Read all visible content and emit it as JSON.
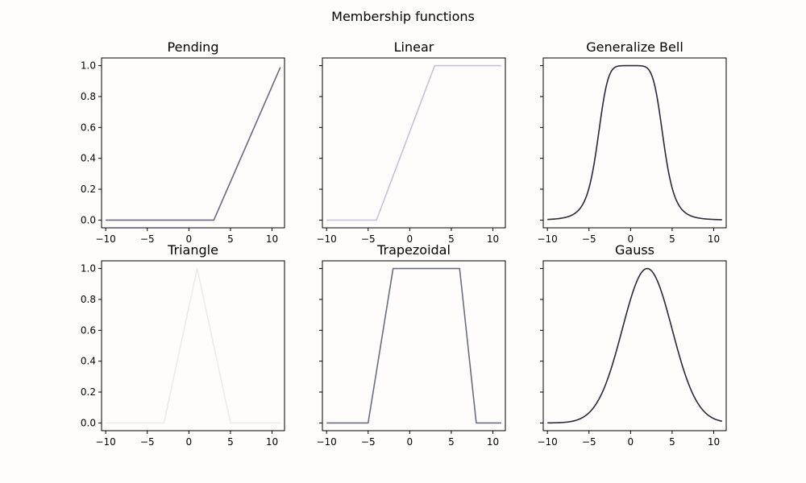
{
  "suptitle": "Membership functions",
  "chart_data": [
    {
      "type": "line",
      "title": "Pending",
      "color": "#6b6880",
      "x": [
        -10,
        3,
        11
      ],
      "y": [
        0,
        0,
        0.99
      ],
      "xlim": [
        -10.5,
        11.5
      ],
      "ylim": [
        -0.05,
        1.05
      ],
      "xticks": [
        -10,
        -5,
        0,
        5,
        10
      ],
      "yticks": [
        0.0,
        0.2,
        0.4,
        0.6,
        0.8,
        1.0
      ],
      "ytick_labels": true
    },
    {
      "type": "line",
      "title": "Linear",
      "color": "#c9c2d6",
      "x": [
        -10,
        -4,
        3,
        11
      ],
      "y": [
        0,
        0,
        1,
        1
      ],
      "xlim": [
        -10.5,
        11.5
      ],
      "ylim": [
        -0.05,
        1.05
      ],
      "xticks": [
        -10,
        -5,
        0,
        5,
        10
      ],
      "yticks": [
        0.0,
        0.2,
        0.4,
        0.6,
        0.8,
        1.0
      ],
      "ytick_labels": false
    },
    {
      "type": "line",
      "title": "Generalize Bell",
      "color": "#2b2a36",
      "function": "generalized_bell",
      "params": {
        "a": 4,
        "b": 3,
        "c": 0
      },
      "x_range": [
        -10,
        11
      ],
      "xlim": [
        -10.5,
        11.5
      ],
      "ylim": [
        -0.05,
        1.05
      ],
      "xticks": [
        -10,
        -5,
        0,
        5,
        10
      ],
      "yticks": [
        0.0,
        0.2,
        0.4,
        0.6,
        0.8,
        1.0
      ],
      "ytick_labels": false
    },
    {
      "type": "line",
      "title": "Triangle",
      "color": "#ede9ec",
      "x": [
        -10,
        -3,
        1,
        5,
        11
      ],
      "y": [
        0,
        0,
        1,
        0,
        0
      ],
      "xlim": [
        -10.5,
        11.5
      ],
      "ylim": [
        -0.05,
        1.05
      ],
      "xticks": [
        -10,
        -5,
        0,
        5,
        10
      ],
      "yticks": [
        0.0,
        0.2,
        0.4,
        0.6,
        0.8,
        1.0
      ],
      "ytick_labels": true
    },
    {
      "type": "line",
      "title": "Trapezoidal",
      "color": "#6b6e82",
      "x": [
        -10,
        -5,
        -2,
        6,
        8,
        11
      ],
      "y": [
        0,
        0,
        1,
        1,
        0,
        0
      ],
      "xlim": [
        -10.5,
        11.5
      ],
      "ylim": [
        -0.05,
        1.05
      ],
      "xticks": [
        -10,
        -5,
        0,
        5,
        10
      ],
      "yticks": [
        0.0,
        0.2,
        0.4,
        0.6,
        0.8,
        1.0
      ],
      "ytick_labels": false
    },
    {
      "type": "line",
      "title": "Gauss",
      "color": "#2b2a36",
      "function": "gaussian",
      "params": {
        "mean": 2,
        "sigma": 3
      },
      "x_range": [
        -10,
        11
      ],
      "xlim": [
        -10.5,
        11.5
      ],
      "ylim": [
        -0.05,
        1.05
      ],
      "xticks": [
        -10,
        -5,
        0,
        5,
        10
      ],
      "yticks": [
        0.0,
        0.2,
        0.4,
        0.6,
        0.8,
        1.0
      ],
      "ytick_labels": false
    }
  ]
}
